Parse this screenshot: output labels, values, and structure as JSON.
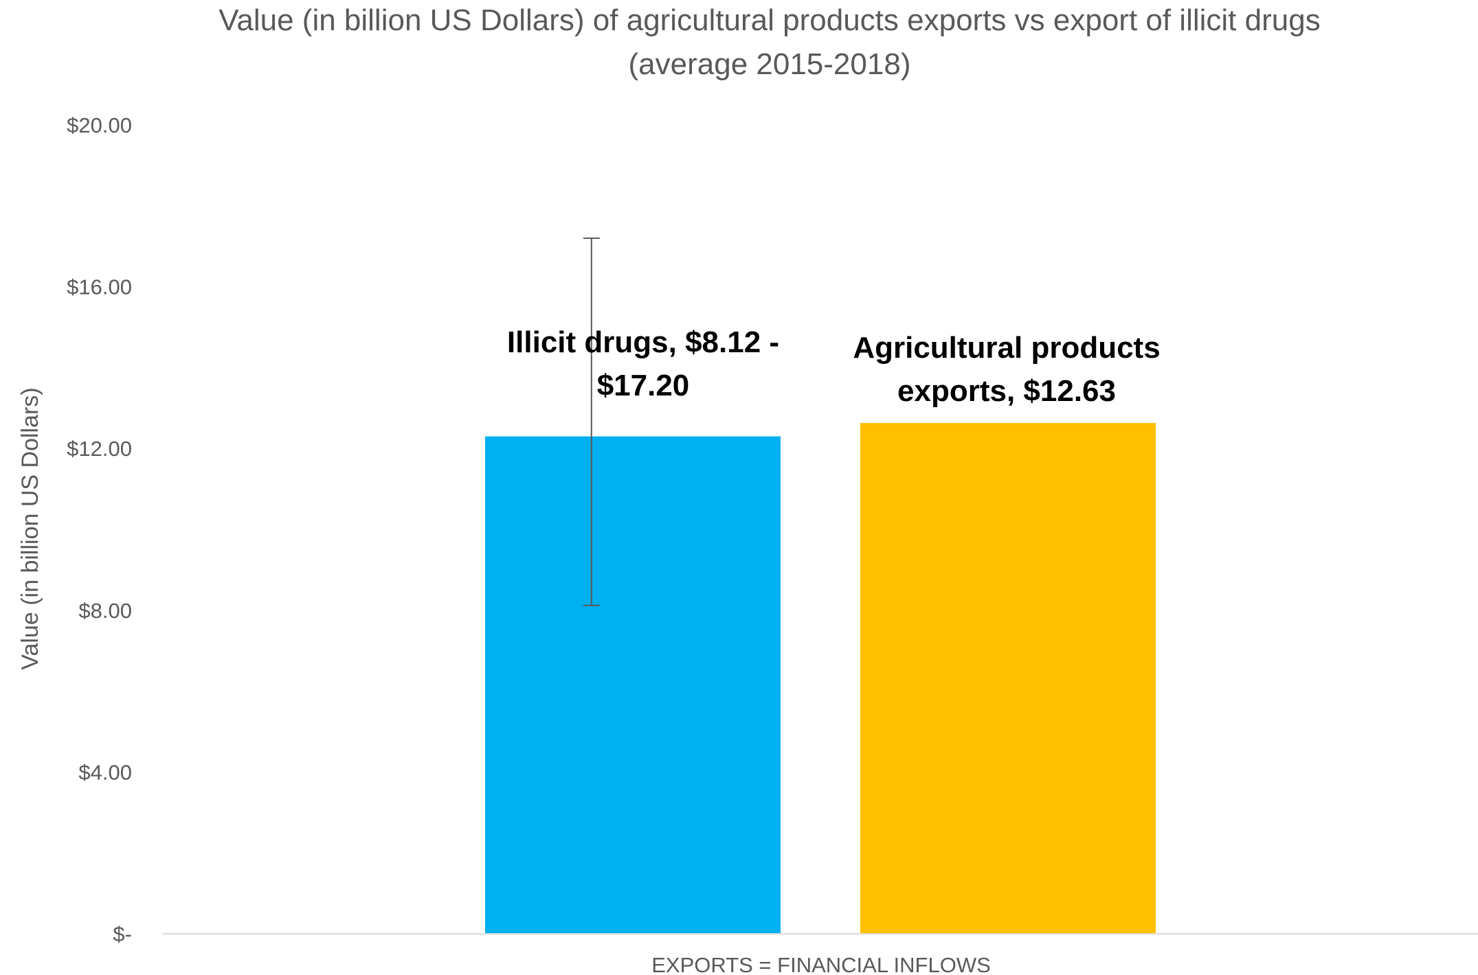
{
  "chart_data": {
    "type": "bar",
    "title": "Value (in billion US Dollars) of agricultural products exports vs export of illicit drugs",
    "subtitle": "(average 2015-2018)",
    "xlabel": "",
    "ylabel": "Value (in billion US Dollars)",
    "categories": [
      "EXPORTS = FINANCIAL INFLOWS"
    ],
    "series": [
      {
        "name": "Illicit drugs",
        "values": [
          12.3
        ],
        "color": "#00B0F0",
        "error_low": 8.12,
        "error_high": 17.2,
        "label_lines": [
          "Illicit drugs, $8.12 -",
          "$17.20"
        ]
      },
      {
        "name": "Agricultural products exports",
        "values": [
          12.63
        ],
        "color": "#FFC000",
        "label_lines": [
          "Agricultural products",
          "exports,  $12.63"
        ]
      }
    ],
    "ylim": [
      0,
      20
    ],
    "yticks": [
      0,
      4,
      8,
      12,
      16,
      20
    ],
    "ytick_labels": [
      "$-",
      "$4.00",
      "$8.00",
      "$12.00",
      "$16.00",
      "$20.00"
    ],
    "grid": false,
    "legend": "none"
  }
}
